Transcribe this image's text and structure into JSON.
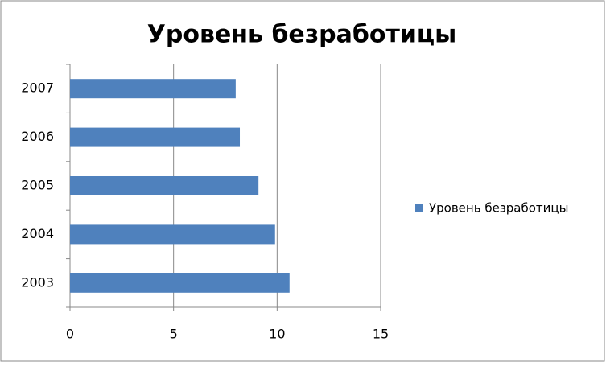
{
  "chart_data": {
    "type": "bar",
    "orientation": "horizontal",
    "title": "Уровень безработицы",
    "categories": [
      "2003",
      "2004",
      "2005",
      "2006",
      "2007"
    ],
    "series": [
      {
        "name": "Уровень безработицы",
        "color": "#4f81bd",
        "values": [
          10.6,
          9.9,
          9.1,
          8.2,
          8.0
        ]
      }
    ],
    "xlim": [
      0,
      15
    ],
    "xticks": [
      0,
      5,
      10,
      15
    ],
    "grid": true,
    "legend": "right"
  }
}
